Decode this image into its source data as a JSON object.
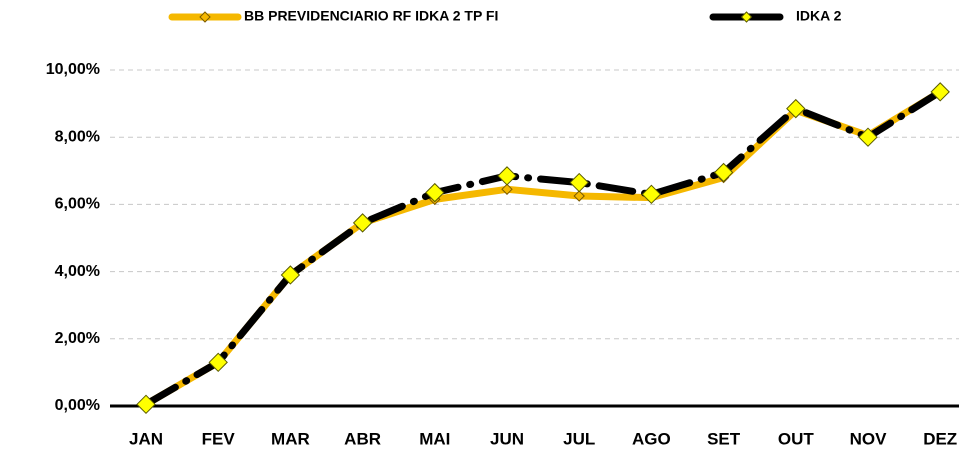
{
  "chart_data": {
    "type": "line",
    "categories": [
      "JAN",
      "FEV",
      "MAR",
      "ABR",
      "MAI",
      "JUN",
      "JUL",
      "AGO",
      "SET",
      "OUT",
      "NOV",
      "DEZ"
    ],
    "series": [
      {
        "name": "BB PREVIDENCIARIO RF IDKA 2 TP FI",
        "color": "#f5b800",
        "values": [
          0.05,
          1.3,
          3.9,
          5.45,
          6.15,
          6.45,
          6.25,
          6.2,
          6.8,
          8.8,
          8.05,
          9.35
        ]
      },
      {
        "name": "IDKA 2",
        "color": "#000000",
        "values": [
          0.05,
          1.3,
          3.9,
          5.45,
          6.35,
          6.85,
          6.65,
          6.3,
          6.95,
          8.85,
          8.0,
          9.35
        ]
      }
    ],
    "ylim": [
      0,
      10
    ],
    "yticks": [
      {
        "value": 0,
        "label": "0,00%"
      },
      {
        "value": 2,
        "label": "2,00%"
      },
      {
        "value": 4,
        "label": "4,00%"
      },
      {
        "value": 6,
        "label": "6,00%"
      },
      {
        "value": 8,
        "label": "8,00%"
      },
      {
        "value": 10,
        "label": "10,00%"
      }
    ],
    "grid": true
  }
}
